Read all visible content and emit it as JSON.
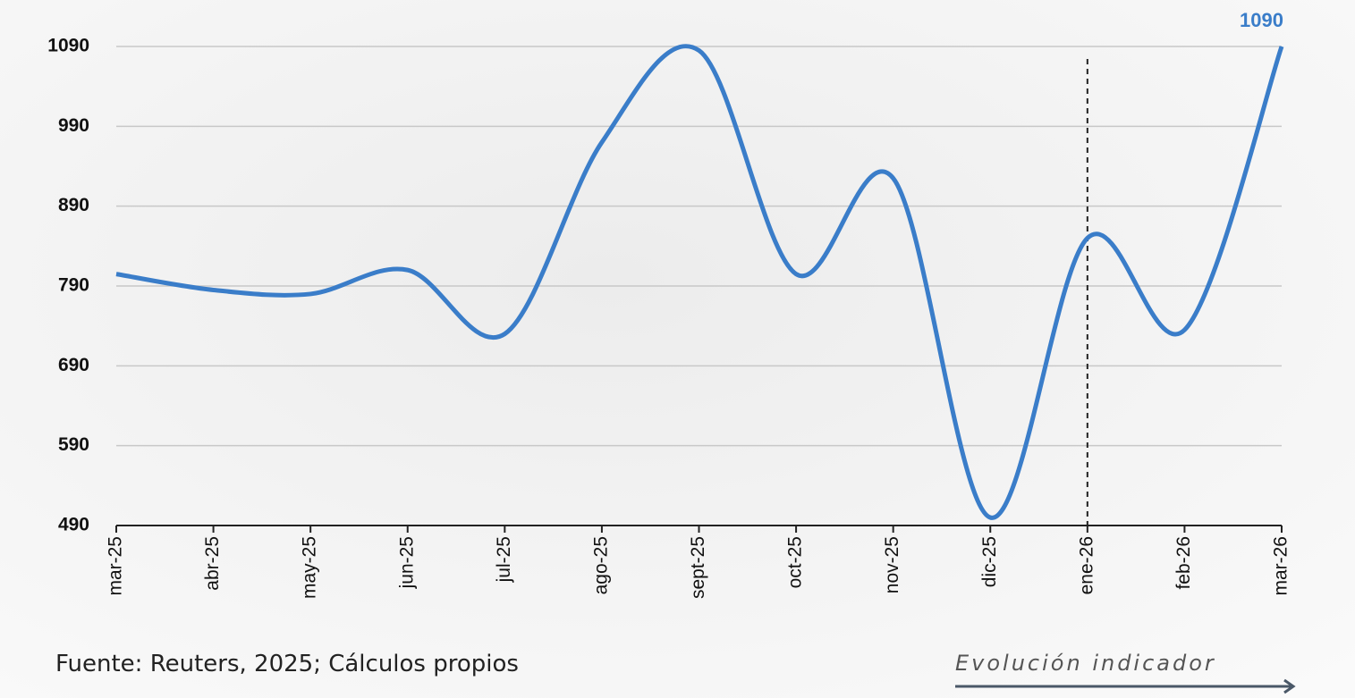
{
  "chart_data": {
    "type": "line",
    "categories": [
      "mar-25",
      "abr-25",
      "may-25",
      "jun-25",
      "jul-25",
      "ago-25",
      "sept-25",
      "oct-25",
      "nov-25",
      "dic-25",
      "ene-26",
      "feb-26",
      "mar-26"
    ],
    "series": [
      {
        "color": "#3a7dc9",
        "values": [
          805,
          785,
          780,
          810,
          730,
          970,
          1085,
          805,
          925,
          500,
          850,
          735,
          1090
        ]
      }
    ],
    "ylim": [
      490,
      1090
    ],
    "yticks": [
      490,
      590,
      690,
      790,
      890,
      990,
      1090
    ],
    "grid": true,
    "vline": "ene-26",
    "source": "Fuente: Reuters, 2025; Cálculos propios",
    "caption": "Evolución indicador"
  }
}
